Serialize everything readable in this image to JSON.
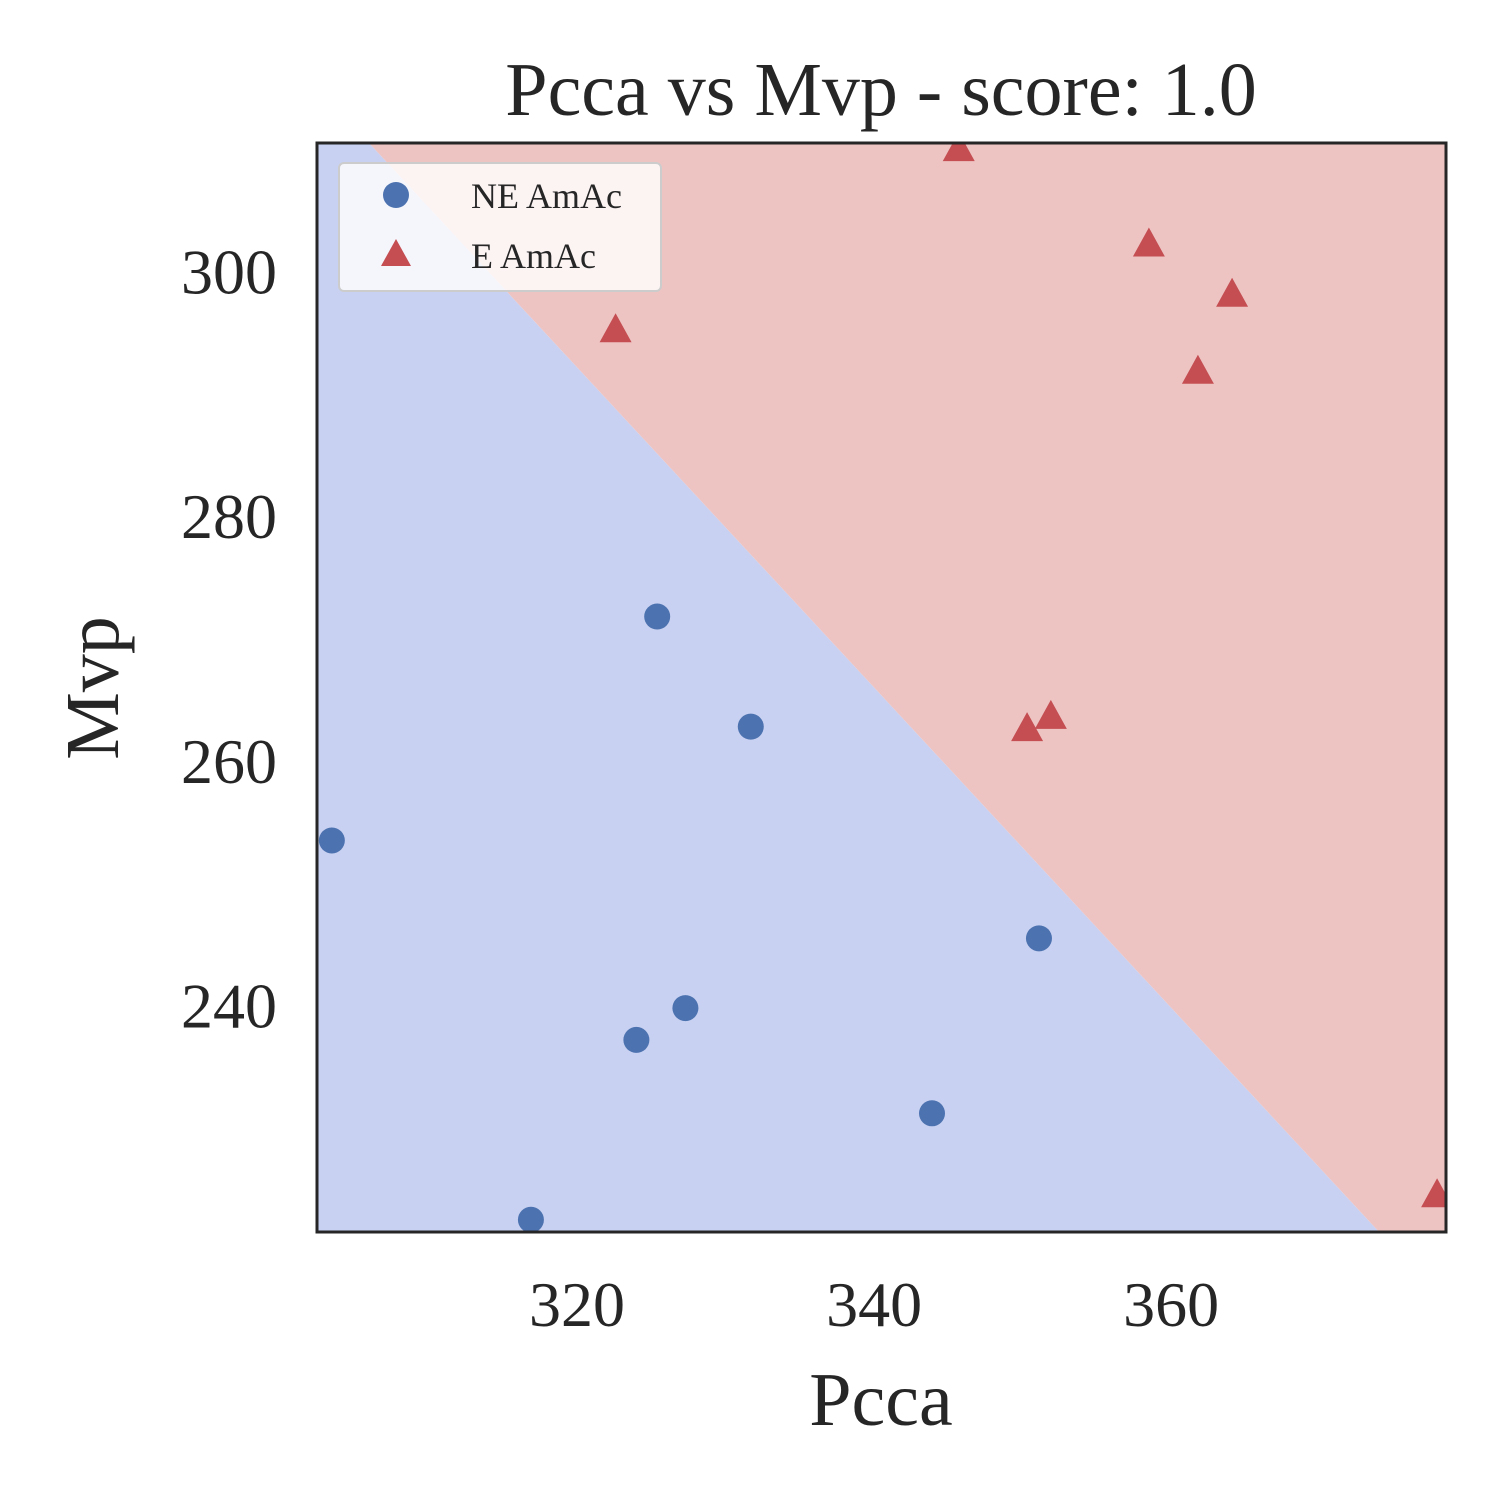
{
  "chart_data": {
    "type": "scatter",
    "title": "Pcca vs Mvp - score: 1.0",
    "xlabel": "Pcca",
    "ylabel": "Mvp",
    "xlim": [
      302.5,
      378.5
    ],
    "ylim": [
      221.5,
      310.5
    ],
    "xticks": [
      320,
      340,
      360
    ],
    "yticks": [
      240,
      260,
      280,
      300
    ],
    "grid": false,
    "legend_position": "top-left",
    "decision_boundary": {
      "line": [
        [
          306.0,
          310.5
        ],
        [
          374.0,
          221.5
        ]
      ],
      "regions": [
        {
          "class": "NE AmAc",
          "side": "below-left",
          "color": "#c8d1f1"
        },
        {
          "class": "E AmAc",
          "side": "above-right",
          "color": "#eec4c3"
        }
      ]
    },
    "series": [
      {
        "name": "NE AmAc",
        "marker": "circle",
        "color": "#4c72b0",
        "points": [
          [
            303.5,
            253.5
          ],
          [
            316.9,
            222.5
          ],
          [
            324.0,
            237.2
          ],
          [
            325.4,
            271.8
          ],
          [
            327.3,
            239.8
          ],
          [
            331.7,
            262.8
          ],
          [
            343.9,
            231.2
          ],
          [
            351.1,
            245.5
          ]
        ]
      },
      {
        "name": "E AmAc",
        "marker": "triangle",
        "color": "#c44e52",
        "points": [
          [
            322.6,
            295.2
          ],
          [
            345.7,
            310.0
          ],
          [
            350.3,
            262.6
          ],
          [
            351.9,
            263.6
          ],
          [
            358.5,
            302.2
          ],
          [
            361.8,
            291.8
          ],
          [
            364.1,
            298.1
          ],
          [
            377.9,
            224.5
          ]
        ]
      }
    ]
  }
}
